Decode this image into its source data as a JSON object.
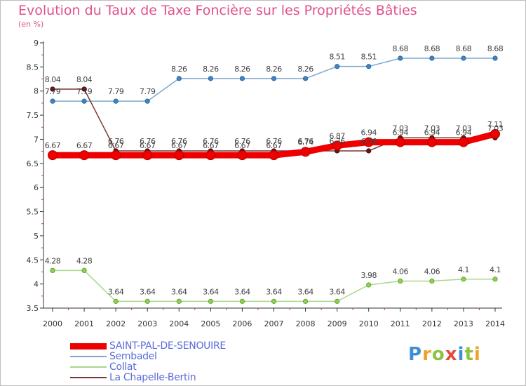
{
  "chart_data": {
    "type": "line",
    "title": "Evolution du Taux de Taxe Foncière sur les Propriétés Bâties",
    "subtitle": "(en %)",
    "xlabel": "",
    "ylabel": "",
    "x": [
      "2000",
      "2001",
      "2002",
      "2003",
      "2004",
      "2005",
      "2006",
      "2007",
      "2008",
      "2009",
      "2010",
      "2011",
      "2012",
      "2013",
      "2014"
    ],
    "ylim": [
      3.5,
      9
    ],
    "yticks": [
      "3.5",
      "4",
      "4.5",
      "5",
      "5.5",
      "6",
      "6.5",
      "7",
      "7.5",
      "8",
      "8.5",
      "9"
    ],
    "grid": false,
    "legend_position": "bottom-left",
    "series": [
      {
        "name": "SAINT-PAL-DE-SENOUIRE",
        "color": "#ee0000",
        "values": [
          6.67,
          6.67,
          6.67,
          6.67,
          6.67,
          6.67,
          6.67,
          6.67,
          6.74,
          6.87,
          6.94,
          6.94,
          6.94,
          6.94,
          7.11
        ],
        "labels": [
          "6.67",
          "6.67",
          "6.67",
          "6.67",
          "6.67",
          "6.67",
          "6.67",
          "6.67",
          "6.74",
          "6.87",
          "6.94",
          "6.94",
          "6.94",
          "6.94",
          "7.11"
        ]
      },
      {
        "name": "Sembadel",
        "color": "#7da7cc",
        "values": [
          7.79,
          7.79,
          7.79,
          7.79,
          8.26,
          8.26,
          8.26,
          8.26,
          8.26,
          8.51,
          8.51,
          8.68,
          8.68,
          8.68,
          8.68
        ],
        "labels": [
          "7.79",
          "7.79",
          "7.79",
          "7.79",
          "8.26",
          "8.26",
          "8.26",
          "8.26",
          "8.26",
          "8.51",
          "8.51",
          "8.68",
          "8.68",
          "8.68",
          "8.68"
        ]
      },
      {
        "name": "Collat",
        "color": "#a8d88a",
        "values": [
          4.28,
          4.28,
          3.64,
          3.64,
          3.64,
          3.64,
          3.64,
          3.64,
          3.64,
          3.64,
          3.98,
          4.06,
          4.06,
          4.1,
          4.1
        ],
        "labels": [
          "4.28",
          "4.28",
          "3.64",
          "3.64",
          "3.64",
          "3.64",
          "3.64",
          "3.64",
          "3.64",
          "3.64",
          "3.98",
          "4.06",
          "4.06",
          "4.1",
          "4.1"
        ]
      },
      {
        "name": "La Chapelle-Bertin",
        "color": "#7a3434",
        "values": [
          8.04,
          8.04,
          6.76,
          6.76,
          6.76,
          6.76,
          6.76,
          6.76,
          6.76,
          6.76,
          6.76,
          7.03,
          7.03,
          7.03,
          7.03
        ],
        "labels": [
          "8.04",
          "8.04",
          "6.76",
          "6.76",
          "6.76",
          "6.76",
          "6.76",
          "6.76",
          "6.76",
          "6.76",
          "6.76",
          "7.03",
          "7.03",
          "7.03",
          "7.03"
        ]
      }
    ]
  },
  "logo_text": "Proxiti"
}
